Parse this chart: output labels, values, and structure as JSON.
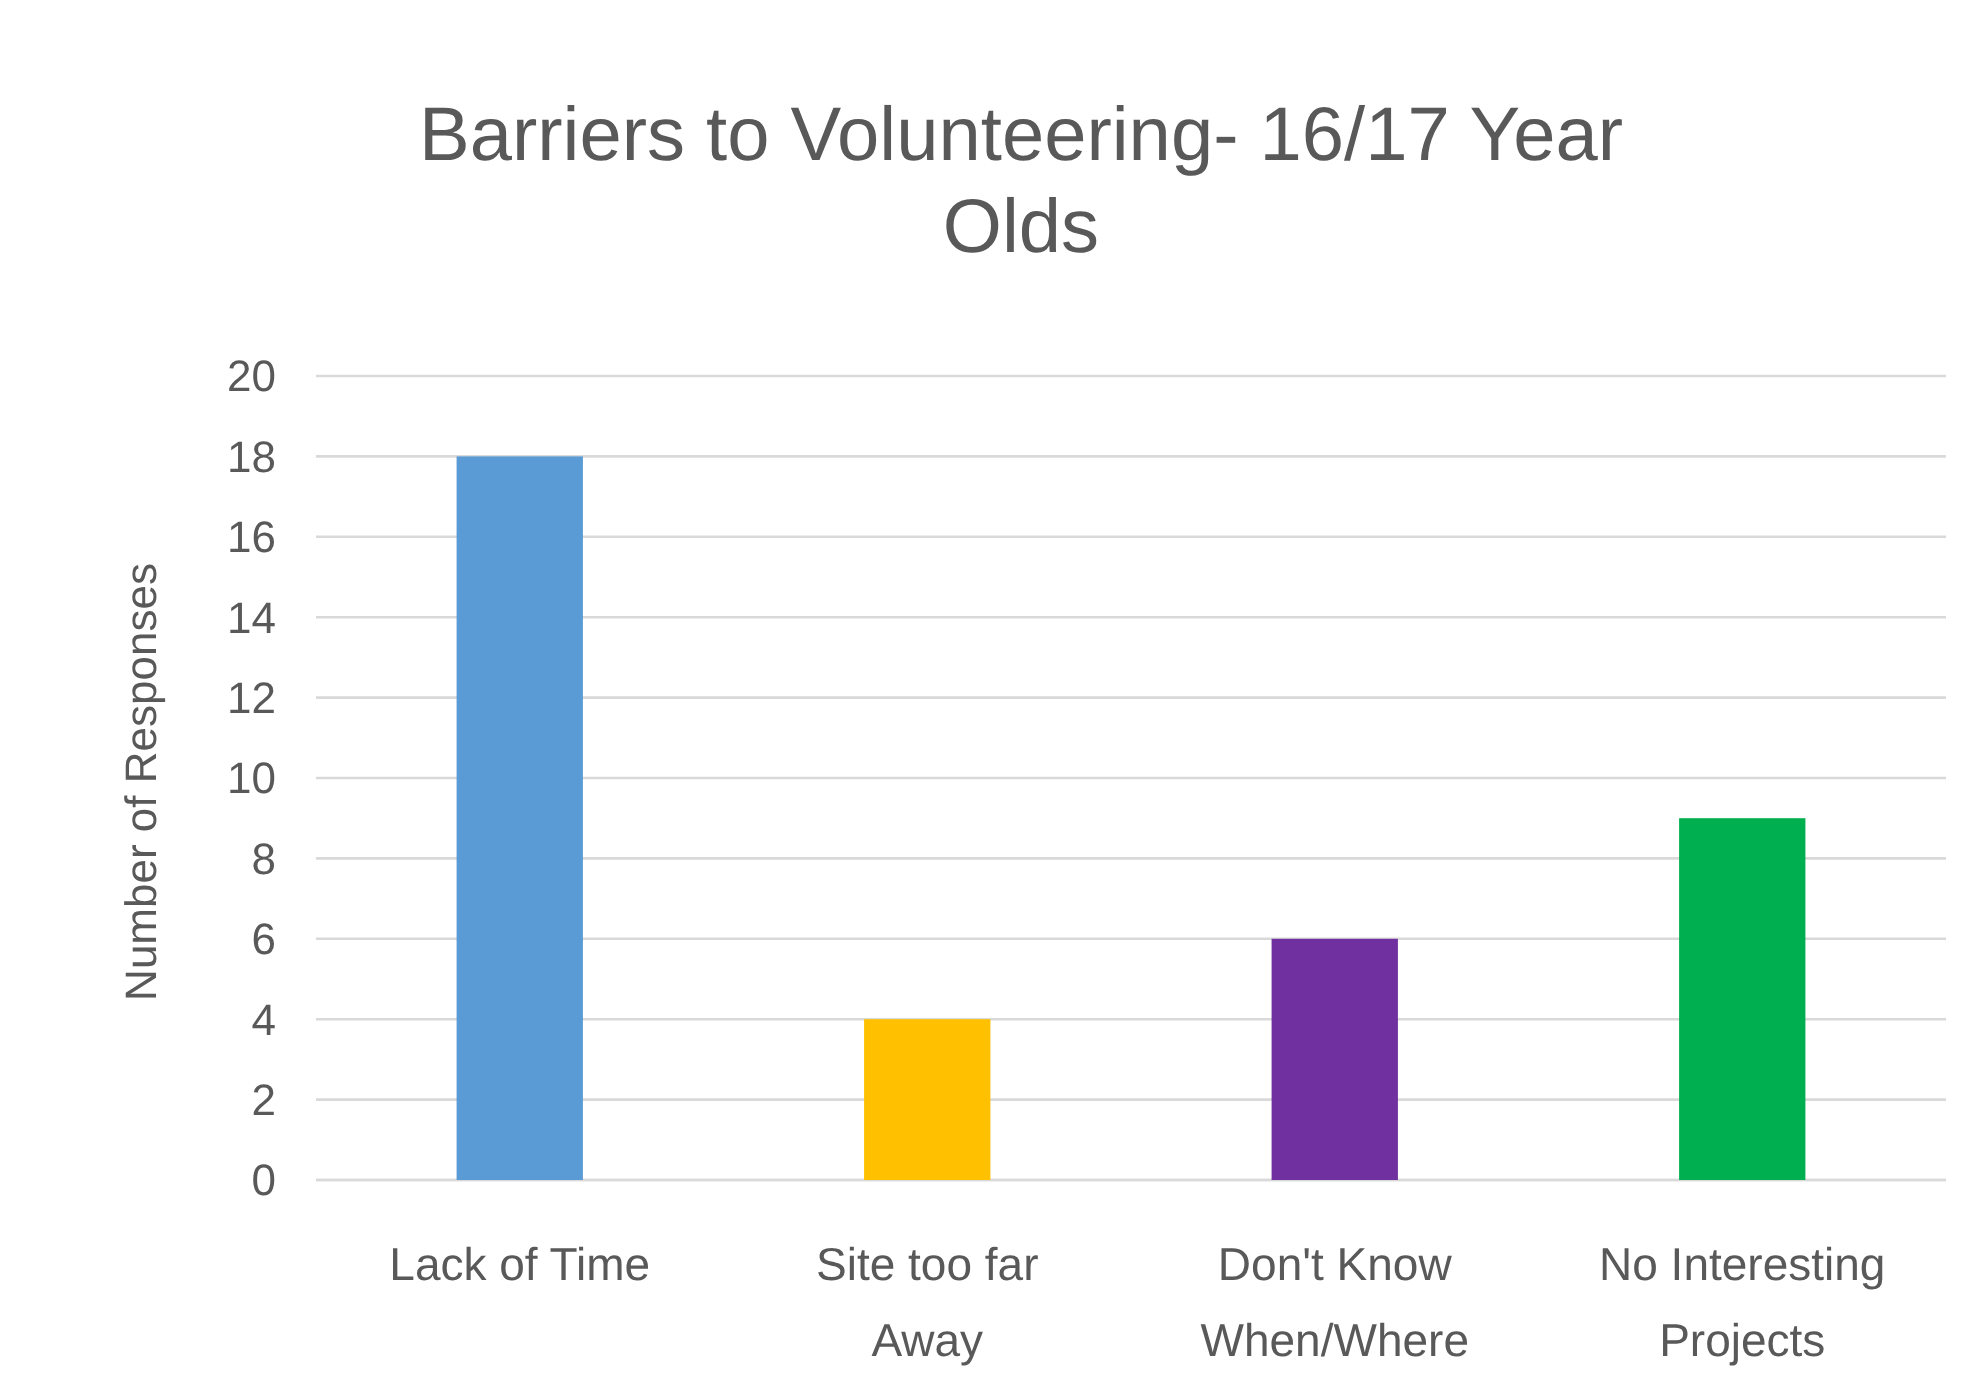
{
  "chart_data": {
    "type": "bar",
    "title": "Barriers to Volunteering- 16/17 Year Olds",
    "ylabel": "Number of Responses",
    "categories": [
      "Lack of Time",
      "Site too far Away",
      "Don't Know When/Where",
      "No Interesting Projects"
    ],
    "values": [
      18,
      4,
      6,
      9
    ],
    "colors": [
      "#5b9bd5",
      "#ffc000",
      "#7030a0",
      "#00b050"
    ],
    "ylim": [
      0,
      20
    ],
    "yticks": [
      0,
      2,
      4,
      6,
      8,
      10,
      12,
      14,
      16,
      18,
      20
    ],
    "grid": "y"
  }
}
